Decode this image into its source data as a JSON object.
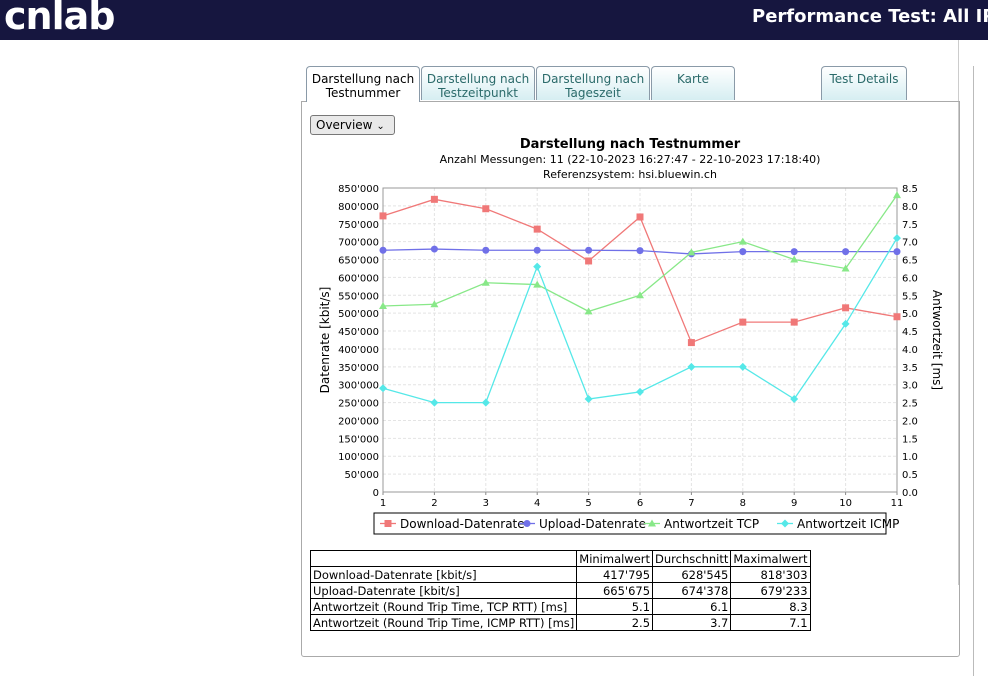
{
  "header": {
    "logo": "cnlab",
    "title": "Performance Test: All IP"
  },
  "tabs": [
    {
      "label": "Darstellung nach Testnummer",
      "active": true
    },
    {
      "label": "Darstellung nach Testzeitpunkt"
    },
    {
      "label": "Darstellung nach Tageszeit"
    },
    {
      "label": "Karte"
    },
    {
      "label": "Test Details"
    }
  ],
  "select": {
    "value": "Overview"
  },
  "chart_data": {
    "type": "line",
    "title": "Darstellung nach Testnummer",
    "subtitle": "Anzahl Messungen: 11 (22-10-2023 16:27:47 - 22-10-2023 17:18:40)",
    "subtitle2": "Referenzsystem: hsi.bluewin.ch",
    "xlabel": "",
    "ylabel": "Datenrate [kbit/s]",
    "y2label": "Antwortzeit [ms]",
    "x": [
      1,
      2,
      3,
      4,
      5,
      6,
      7,
      8,
      9,
      10,
      11
    ],
    "xlim": [
      1,
      11
    ],
    "ylim": [
      0,
      850000
    ],
    "y2lim": [
      0,
      8.5
    ],
    "grid": true,
    "legend": "bottom",
    "yticks": [
      "0",
      "50'000",
      "100'000",
      "150'000",
      "200'000",
      "250'000",
      "300'000",
      "350'000",
      "400'000",
      "450'000",
      "500'000",
      "550'000",
      "600'000",
      "650'000",
      "700'000",
      "750'000",
      "800'000",
      "850'000"
    ],
    "y2ticks": [
      "0.0",
      "0.5",
      "1.0",
      "1.5",
      "2.0",
      "2.5",
      "3.0",
      "3.5",
      "4.0",
      "4.5",
      "5.0",
      "5.5",
      "6.0",
      "6.5",
      "7.0",
      "7.5",
      "8.0",
      "8.5"
    ],
    "series": [
      {
        "name": "Download-Datenrate",
        "axis": "left",
        "color": "#f07878",
        "marker": "square",
        "values": [
          772000,
          818303,
          792000,
          735000,
          646000,
          769000,
          417795,
          475000,
          475000,
          515000,
          490000
        ]
      },
      {
        "name": "Upload-Datenrate",
        "axis": "left",
        "color": "#7070e8",
        "marker": "circle",
        "values": [
          676000,
          679233,
          676000,
          676000,
          676000,
          675000,
          665675,
          672000,
          672000,
          672000,
          672000
        ]
      },
      {
        "name": "Antwortzeit TCP",
        "axis": "right",
        "color": "#88e888",
        "marker": "triangle",
        "values": [
          5.2,
          5.25,
          5.85,
          5.8,
          5.05,
          5.5,
          6.7,
          7.0,
          6.5,
          6.25,
          8.3
        ]
      },
      {
        "name": "Antwortzeit ICMP",
        "axis": "right",
        "color": "#55e8e8",
        "marker": "diamond",
        "values": [
          2.9,
          2.5,
          2.5,
          6.3,
          2.6,
          2.8,
          3.5,
          3.5,
          2.6,
          4.7,
          7.1
        ]
      }
    ]
  },
  "table": {
    "headers": [
      "",
      "Minimalwert",
      "Durchschnitt",
      "Maximalwert"
    ],
    "rows": [
      [
        "Download-Datenrate [kbit/s]",
        "417'795",
        "628'545",
        "818'303"
      ],
      [
        "Upload-Datenrate [kbit/s]",
        "665'675",
        "674'378",
        "679'233"
      ],
      [
        "Antwortzeit (Round Trip Time, TCP RTT) [ms]",
        "5.1",
        "6.1",
        "8.3"
      ],
      [
        "Antwortzeit (Round Trip Time, ICMP RTT) [ms]",
        "2.5",
        "3.7",
        "7.1"
      ]
    ]
  }
}
